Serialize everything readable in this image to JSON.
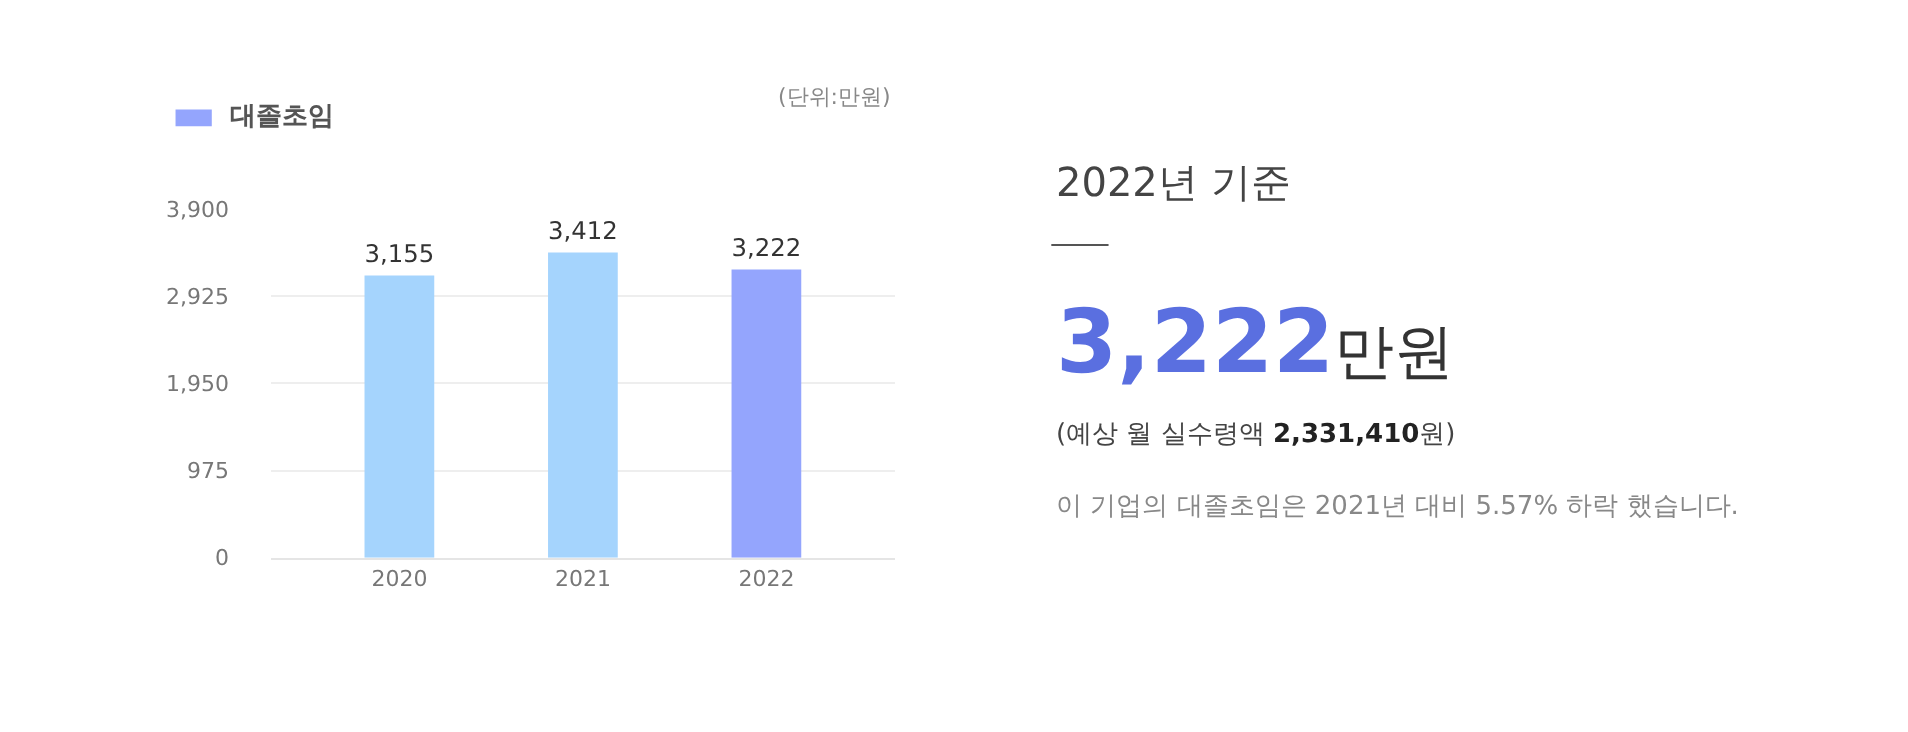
{
  "chart_data": [
    {
      "type": "bar",
      "categories": [
        "2020",
        "2021",
        "2022"
      ],
      "series": [
        {
          "name": "대졸초임",
          "color": "#94a5fd",
          "colors": [
            "#a5d4fd",
            "#a5d4fd",
            "#94a5fd"
          ],
          "values": [
            3155,
            3412,
            3222
          ]
        }
      ],
      "ylim": [
        0,
        3900
      ],
      "yticks": [
        {
          "value": 0,
          "label": "0"
        },
        {
          "value": 975,
          "label": "975"
        },
        {
          "value": 1950,
          "label": "1,950"
        },
        {
          "value": 2925,
          "label": "2,925"
        },
        {
          "value": 3900,
          "label": "3,900"
        }
      ],
      "grid": "y",
      "legend": "top left",
      "value_labels": [
        "3,155",
        "3,412",
        "3,222"
      ],
      "annotations": [
        "(단위:만원)"
      ]
    },
    {
      "type": "other",
      "annotations": [
        "2022년 기준",
        "3,222만원",
        "(예상 월 실수령액 2,331,410원)",
        "이 기업의 대졸초임은 2021년 대비 5.57% 하락 했습니다."
      ]
    }
  ]
}
